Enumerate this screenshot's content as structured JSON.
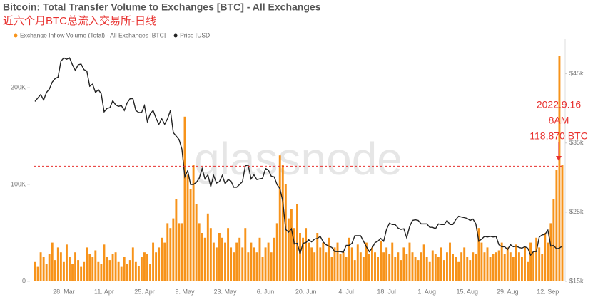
{
  "chart_data": {
    "type": "bar_line",
    "title": "Bitcoin: Total Transfer Volume to Exchanges [BTC] - All Exchanges",
    "subtitle": "近六个月BTC总流入交易所-日线",
    "watermark": "glassnode",
    "legend": "top-left",
    "categories": [
      null,
      null,
      null,
      null,
      null,
      null,
      null,
      null,
      null,
      null,
      "28. Mar",
      null,
      null,
      null,
      null,
      null,
      null,
      null,
      null,
      null,
      null,
      null,
      null,
      null,
      "11. Apr",
      null,
      null,
      null,
      null,
      null,
      null,
      null,
      null,
      null,
      null,
      null,
      null,
      null,
      "25. Apr",
      null,
      null,
      null,
      null,
      null,
      null,
      null,
      null,
      null,
      null,
      null,
      null,
      null,
      "9. May",
      null,
      null,
      null,
      null,
      null,
      null,
      null,
      null,
      null,
      null,
      null,
      null,
      null,
      "23. May",
      null,
      null,
      null,
      null,
      null,
      null,
      null,
      null,
      null,
      null,
      null,
      null,
      null,
      "6. Jun",
      null,
      null,
      null,
      null,
      null,
      null,
      null,
      null,
      null,
      null,
      null,
      null,
      null,
      "20. Jun",
      null,
      null,
      null,
      null,
      null,
      null,
      null,
      null,
      null,
      null,
      null,
      null,
      null,
      "4. Jul",
      null,
      null,
      null,
      null,
      null,
      null,
      null,
      null,
      null,
      null,
      null,
      null,
      null,
      "18. Jul",
      null,
      null,
      null,
      null,
      null,
      null,
      null,
      null,
      null,
      null,
      null,
      null,
      null,
      "1. Aug",
      null,
      null,
      null,
      null,
      null,
      null,
      null,
      null,
      null,
      null,
      null,
      null,
      null,
      "15. Aug",
      null,
      null,
      null,
      null,
      null,
      null,
      null,
      null,
      null,
      null,
      null,
      null,
      null,
      "29. Aug",
      null,
      null,
      null,
      null,
      null,
      null,
      null,
      null,
      null,
      null,
      null,
      null,
      null,
      "12. Sep",
      null,
      null,
      null,
      null,
      null
    ],
    "series": [
      {
        "name": "Exchange Inflow Volume (Total) - All Exchanges [BTC]",
        "color": "#f7931a",
        "type": "bar",
        "values": [
          20000,
          15000,
          30000,
          25000,
          18000,
          28000,
          40000,
          22000,
          35000,
          30000,
          20000,
          38000,
          25000,
          18000,
          30000,
          22000,
          15000,
          20000,
          35000,
          28000,
          25000,
          32000,
          20000,
          18000,
          38000,
          25000,
          22000,
          28000,
          30000,
          20000,
          15000,
          25000,
          18000,
          22000,
          35000,
          20000,
          16000,
          25000,
          30000,
          28000,
          18000,
          40000,
          30000,
          35000,
          45000,
          40000,
          60000,
          55000,
          65000,
          85000,
          60000,
          60000,
          170000,
          110000,
          95000,
          120000,
          80000,
          60000,
          50000,
          45000,
          70000,
          55000,
          40000,
          35000,
          50000,
          45000,
          40000,
          55000,
          35000,
          30000,
          40000,
          45000,
          35000,
          55000,
          30000,
          40000,
          35000,
          30000,
          45000,
          25000,
          35000,
          40000,
          30000,
          45000,
          60000,
          130000,
          120000,
          100000,
          65000,
          75000,
          55000,
          80000,
          50000,
          45000,
          55000,
          40000,
          35000,
          30000,
          50000,
          35000,
          40000,
          30000,
          45000,
          25000,
          35000,
          40000,
          28000,
          30000,
          25000,
          45000,
          35000,
          22000,
          38000,
          30000,
          25000,
          40000,
          28000,
          35000,
          30000,
          25000,
          42000,
          30000,
          35000,
          28000,
          40000,
          25000,
          30000,
          22000,
          35000,
          28000,
          40000,
          30000,
          25000,
          22000,
          30000,
          38000,
          25000,
          20000,
          32000,
          28000,
          25000,
          35000,
          22000,
          30000,
          40000,
          28000,
          25000,
          20000,
          30000,
          35000,
          25000,
          22000,
          30000,
          28000,
          55000,
          40000,
          30000,
          35000,
          25000,
          28000,
          30000,
          32000,
          40000,
          28000,
          35000,
          30000,
          25000,
          38000,
          30000,
          25000,
          35000,
          20000,
          40000,
          30000,
          45000,
          35000,
          28000,
          50000,
          40000,
          60000,
          85000,
          115000,
          233000,
          120000
        ]
      },
      {
        "name": "Price [USD]",
        "color": "#222222",
        "type": "line",
        "axis": "y2",
        "values": [
          41000,
          41500,
          42000,
          41200,
          42300,
          42800,
          43800,
          44300,
          44500,
          46800,
          47300,
          47100,
          47300,
          46300,
          45500,
          46300,
          46400,
          45600,
          45400,
          43200,
          43500,
          42300,
          42700,
          42100,
          39500,
          40000,
          40100,
          41100,
          40500,
          40300,
          40400,
          39700,
          40800,
          41400,
          41400,
          39700,
          39400,
          39400,
          40400,
          38100,
          39200,
          39700,
          38600,
          37700,
          38500,
          37700,
          38500,
          39700,
          36500,
          36000,
          35500,
          34100,
          30100,
          31000,
          29000,
          29000,
          29300,
          29900,
          31300,
          29800,
          30400,
          28700,
          30300,
          29200,
          29400,
          30300,
          29100,
          29700,
          29500,
          28600,
          28600,
          29000,
          29400,
          31700,
          31800,
          29800,
          30400,
          29700,
          29800,
          29900,
          31300,
          31100,
          30200,
          30100,
          29000,
          28400,
          26600,
          22500,
          22100,
          22600,
          20400,
          20500,
          19000,
          20500,
          20600,
          21000,
          20700,
          21100,
          21200,
          21500,
          20700,
          20300,
          20100,
          19900,
          19300,
          19300,
          19300,
          19200,
          20200,
          20200,
          20500,
          21600,
          21600,
          21600,
          20800,
          20000,
          19300,
          19800,
          20600,
          20800,
          21200,
          20800,
          22500,
          23400,
          23200,
          23200,
          22700,
          22500,
          22600,
          21300,
          22900,
          23800,
          23900,
          23800,
          23300,
          23300,
          23300,
          22800,
          22800,
          22600,
          23300,
          23200,
          23200,
          23800,
          23200,
          23200,
          23900,
          24400,
          24300,
          24200,
          24100,
          23800,
          24000,
          23300,
          20800,
          21100,
          21500,
          21400,
          21500,
          21400,
          21500,
          20300,
          20000,
          20000,
          19600,
          20300,
          20000,
          20100,
          19900,
          19800,
          20000,
          19800,
          18800,
          19300,
          19300,
          21400,
          21700,
          21800,
          22400,
          20100,
          20200,
          19700,
          19800,
          20100
        ]
      }
    ],
    "ylim": [
      0,
      250000
    ],
    "yticks": [
      0,
      {
        "value": 100000,
        "label": "100K"
      },
      {
        "value": 200000,
        "label": "200K"
      }
    ],
    "y2lim": [
      15000,
      50000
    ],
    "y2ticks": [
      {
        "value": 15000,
        "label": "$15k"
      },
      {
        "value": 25000,
        "label": "$25k"
      },
      {
        "value": 35000,
        "label": "$35k"
      },
      {
        "value": 45000,
        "label": "$45k"
      }
    ],
    "annotation": {
      "lines": [
        "2022.9.16",
        "8AM",
        "118,870 BTC"
      ],
      "value": 118870,
      "color": "#e8312f"
    }
  }
}
